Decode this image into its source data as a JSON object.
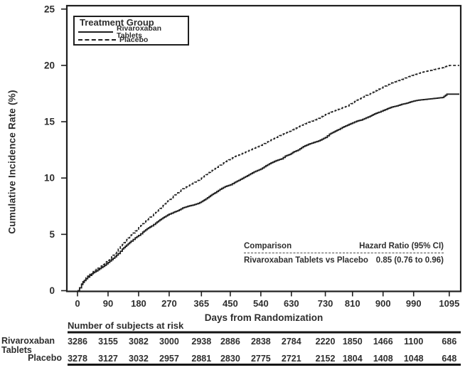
{
  "colors": {
    "line": "#1f1f1f",
    "text": "#2e2e2e",
    "risk_text": "#3a3a3a",
    "background": "#ffffff"
  },
  "chart_data": {
    "type": "line",
    "subtype": "kaplan-meier-step",
    "title": "",
    "xlabel": "Days from Randomization",
    "ylabel": "Cumulative Incidence Rate (%)",
    "xlim": [
      0,
      1129
    ],
    "ylim": [
      0,
      25
    ],
    "grid": false,
    "xticks": [
      0,
      90,
      180,
      270,
      365,
      450,
      540,
      630,
      730,
      810,
      900,
      990,
      1095
    ],
    "yticks": [
      0,
      5,
      10,
      15,
      20,
      25
    ],
    "legend": {
      "title": "Treatment Group",
      "position": "top-left",
      "entries": [
        {
          "label": "Rivaroxaban Tablets",
          "style": "solid"
        },
        {
          "label": "Placebo",
          "style": "dashed"
        }
      ]
    },
    "series": [
      {
        "name": "Rivaroxaban Tablets",
        "style": "solid",
        "points": [
          [
            0,
            0
          ],
          [
            6,
            0.25
          ],
          [
            12,
            0.55
          ],
          [
            20,
            0.9
          ],
          [
            30,
            1.2
          ],
          [
            42,
            1.5
          ],
          [
            55,
            1.75
          ],
          [
            70,
            2.05
          ],
          [
            80,
            2.25
          ],
          [
            90,
            2.5
          ],
          [
            100,
            2.75
          ],
          [
            110,
            3.0
          ],
          [
            120,
            3.3
          ],
          [
            132,
            3.7
          ],
          [
            145,
            4.05
          ],
          [
            158,
            4.4
          ],
          [
            170,
            4.7
          ],
          [
            180,
            4.9
          ],
          [
            192,
            5.2
          ],
          [
            205,
            5.5
          ],
          [
            218,
            5.75
          ],
          [
            230,
            6.0
          ],
          [
            243,
            6.3
          ],
          [
            256,
            6.55
          ],
          [
            270,
            6.8
          ],
          [
            282,
            6.95
          ],
          [
            295,
            7.1
          ],
          [
            310,
            7.35
          ],
          [
            325,
            7.5
          ],
          [
            340,
            7.6
          ],
          [
            355,
            7.75
          ],
          [
            365,
            7.9
          ],
          [
            378,
            8.15
          ],
          [
            392,
            8.45
          ],
          [
            405,
            8.7
          ],
          [
            420,
            9.0
          ],
          [
            435,
            9.25
          ],
          [
            450,
            9.4
          ],
          [
            462,
            9.6
          ],
          [
            475,
            9.8
          ],
          [
            490,
            10.05
          ],
          [
            505,
            10.3
          ],
          [
            520,
            10.55
          ],
          [
            540,
            10.8
          ],
          [
            555,
            11.1
          ],
          [
            570,
            11.35
          ],
          [
            585,
            11.55
          ],
          [
            600,
            11.7
          ],
          [
            612,
            11.95
          ],
          [
            625,
            12.1
          ],
          [
            638,
            12.35
          ],
          [
            650,
            12.5
          ],
          [
            665,
            12.8
          ],
          [
            680,
            13.0
          ],
          [
            695,
            13.15
          ],
          [
            710,
            13.3
          ],
          [
            730,
            13.6
          ],
          [
            742,
            13.9
          ],
          [
            755,
            14.1
          ],
          [
            768,
            14.3
          ],
          [
            780,
            14.5
          ],
          [
            795,
            14.7
          ],
          [
            810,
            14.9
          ],
          [
            822,
            15.05
          ],
          [
            835,
            15.15
          ],
          [
            850,
            15.35
          ],
          [
            862,
            15.5
          ],
          [
            875,
            15.7
          ],
          [
            888,
            15.85
          ],
          [
            900,
            16.0
          ],
          [
            912,
            16.15
          ],
          [
            925,
            16.3
          ],
          [
            940,
            16.4
          ],
          [
            955,
            16.55
          ],
          [
            970,
            16.65
          ],
          [
            985,
            16.8
          ],
          [
            1000,
            16.9
          ],
          [
            1015,
            16.95
          ],
          [
            1030,
            17.0
          ],
          [
            1045,
            17.05
          ],
          [
            1060,
            17.1
          ],
          [
            1075,
            17.15
          ],
          [
            1088,
            17.45
          ],
          [
            1095,
            17.45
          ]
        ]
      },
      {
        "name": "Placebo",
        "style": "dashed",
        "points": [
          [
            0,
            0
          ],
          [
            6,
            0.25
          ],
          [
            12,
            0.6
          ],
          [
            20,
            1.0
          ],
          [
            30,
            1.3
          ],
          [
            42,
            1.6
          ],
          [
            55,
            1.9
          ],
          [
            70,
            2.2
          ],
          [
            80,
            2.45
          ],
          [
            90,
            2.7
          ],
          [
            100,
            3.0
          ],
          [
            110,
            3.3
          ],
          [
            120,
            3.7
          ],
          [
            132,
            4.1
          ],
          [
            145,
            4.55
          ],
          [
            158,
            4.95
          ],
          [
            170,
            5.3
          ],
          [
            180,
            5.6
          ],
          [
            192,
            5.95
          ],
          [
            205,
            6.3
          ],
          [
            218,
            6.65
          ],
          [
            230,
            6.95
          ],
          [
            243,
            7.3
          ],
          [
            256,
            7.7
          ],
          [
            270,
            8.1
          ],
          [
            282,
            8.4
          ],
          [
            295,
            8.7
          ],
          [
            310,
            9.05
          ],
          [
            325,
            9.3
          ],
          [
            340,
            9.55
          ],
          [
            355,
            9.8
          ],
          [
            365,
            10.0
          ],
          [
            378,
            10.3
          ],
          [
            392,
            10.6
          ],
          [
            405,
            10.85
          ],
          [
            420,
            11.15
          ],
          [
            435,
            11.45
          ],
          [
            450,
            11.7
          ],
          [
            462,
            11.9
          ],
          [
            475,
            12.05
          ],
          [
            490,
            12.25
          ],
          [
            505,
            12.45
          ],
          [
            520,
            12.65
          ],
          [
            540,
            12.9
          ],
          [
            555,
            13.15
          ],
          [
            570,
            13.4
          ],
          [
            585,
            13.6
          ],
          [
            600,
            13.85
          ],
          [
            612,
            14.0
          ],
          [
            625,
            14.15
          ],
          [
            638,
            14.35
          ],
          [
            650,
            14.55
          ],
          [
            665,
            14.75
          ],
          [
            680,
            14.95
          ],
          [
            695,
            15.1
          ],
          [
            710,
            15.3
          ],
          [
            730,
            15.65
          ],
          [
            742,
            15.8
          ],
          [
            755,
            15.95
          ],
          [
            768,
            16.1
          ],
          [
            780,
            16.25
          ],
          [
            795,
            16.4
          ],
          [
            810,
            16.7
          ],
          [
            822,
            16.9
          ],
          [
            835,
            17.1
          ],
          [
            850,
            17.35
          ],
          [
            862,
            17.5
          ],
          [
            875,
            17.7
          ],
          [
            888,
            17.9
          ],
          [
            900,
            18.1
          ],
          [
            912,
            18.25
          ],
          [
            925,
            18.45
          ],
          [
            940,
            18.6
          ],
          [
            955,
            18.75
          ],
          [
            970,
            18.95
          ],
          [
            985,
            19.1
          ],
          [
            1000,
            19.25
          ],
          [
            1015,
            19.4
          ],
          [
            1030,
            19.5
          ],
          [
            1045,
            19.6
          ],
          [
            1060,
            19.7
          ],
          [
            1075,
            19.8
          ],
          [
            1088,
            19.95
          ],
          [
            1095,
            20.0
          ]
        ]
      }
    ],
    "annotation_table": {
      "header": [
        "Comparison",
        "Hazard Ratio (95% CI)"
      ],
      "rows": [
        [
          "Rivaroxaban Tablets vs Placebo",
          "0.85 (0.76 to 0.96)"
        ]
      ]
    }
  },
  "at_risk_table": {
    "title": "Number of subjects at risk",
    "days": [
      0,
      90,
      180,
      270,
      365,
      450,
      540,
      630,
      730,
      810,
      900,
      990,
      1095
    ],
    "rows": [
      {
        "label": "Rivaroxaban Tablets",
        "label_lines": [
          "Rivaroxaban",
          "Tablets"
        ],
        "values": [
          3286,
          3155,
          3082,
          3000,
          2938,
          2886,
          2838,
          2784,
          2220,
          1850,
          1466,
          1100,
          686
        ]
      },
      {
        "label": "Placebo",
        "label_lines": [
          "Placebo"
        ],
        "values": [
          3278,
          3127,
          3032,
          2957,
          2881,
          2830,
          2775,
          2721,
          2152,
          1804,
          1408,
          1048,
          648
        ]
      }
    ]
  }
}
